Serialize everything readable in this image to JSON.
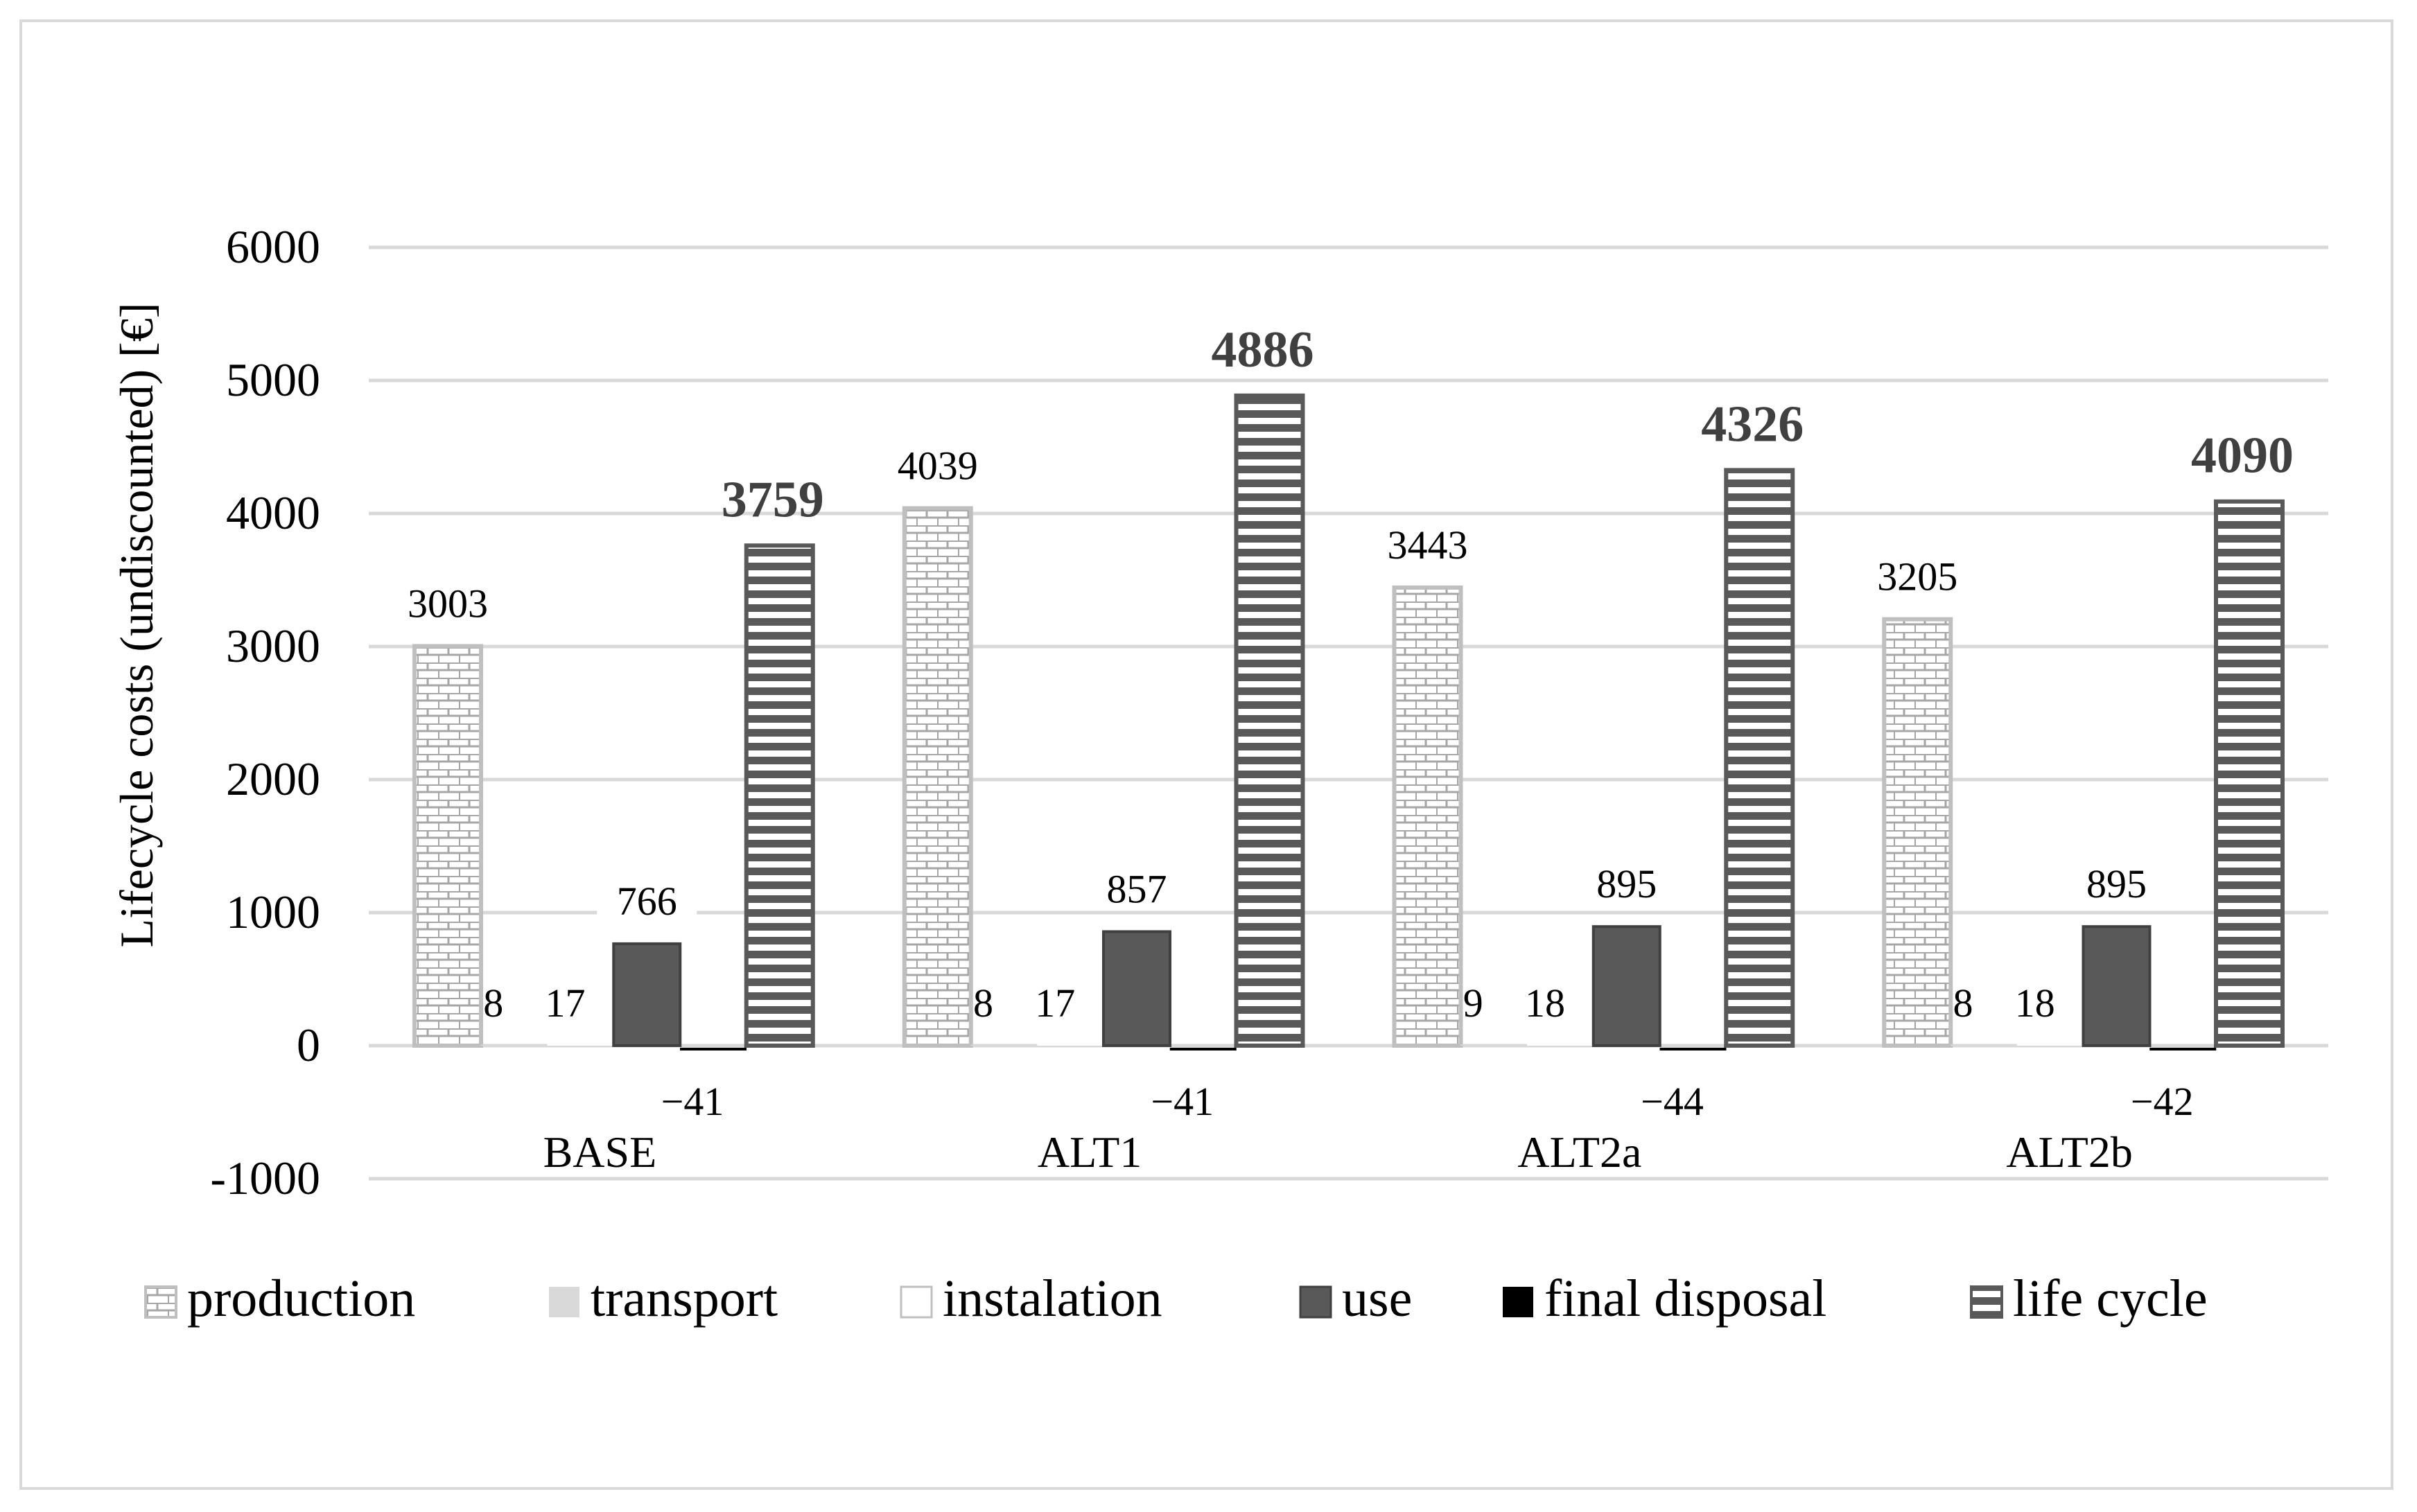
{
  "chart_data": {
    "type": "bar",
    "title": "",
    "xlabel": "",
    "ylabel": "Lifecycle costs (undiscounted) [€]",
    "ylim": [
      -1000,
      6000
    ],
    "yticks": [
      6000,
      5000,
      4000,
      3000,
      2000,
      1000,
      0,
      -1000
    ],
    "ytick_labels": [
      "6000",
      "5000",
      "4000",
      "3000",
      "2000",
      "1000",
      "0",
      "-1000"
    ],
    "grid": true,
    "legend_position": "bottom",
    "categories": [
      "BASE",
      "ALT1",
      "ALT2a",
      "ALT2b"
    ],
    "series": [
      {
        "name": "production",
        "values": [
          3003,
          4039,
          3443,
          3205
        ],
        "labels": [
          "3003",
          "4039",
          "3443",
          "3205"
        ],
        "style": "brick",
        "color": "#bfbfbf"
      },
      {
        "name": "transport",
        "values": [
          8,
          8,
          9,
          8
        ],
        "labels": [
          "8",
          "8",
          "9",
          "8"
        ],
        "style": "solid",
        "color": "#d9d9d9"
      },
      {
        "name": "instalation",
        "values": [
          17,
          17,
          18,
          18
        ],
        "labels": [
          "17",
          "17",
          "18",
          "18"
        ],
        "style": "outline",
        "color": "#ffffff"
      },
      {
        "name": "use",
        "values": [
          766,
          857,
          895,
          895
        ],
        "labels": [
          "766",
          "857",
          "895",
          "895"
        ],
        "style": "solid",
        "color": "#595959"
      },
      {
        "name": "final disposal",
        "values": [
          -41,
          -41,
          -44,
          -42
        ],
        "labels": [
          "−41",
          "−41",
          "−44",
          "−42"
        ],
        "style": "solid",
        "color": "#000000"
      },
      {
        "name": "life cycle",
        "values": [
          3759,
          4886,
          4326,
          4090
        ],
        "labels": [
          "3759",
          "4886",
          "4326",
          "4090"
        ],
        "style": "hstripes",
        "color": "#595959",
        "bold_labels": true
      }
    ]
  }
}
